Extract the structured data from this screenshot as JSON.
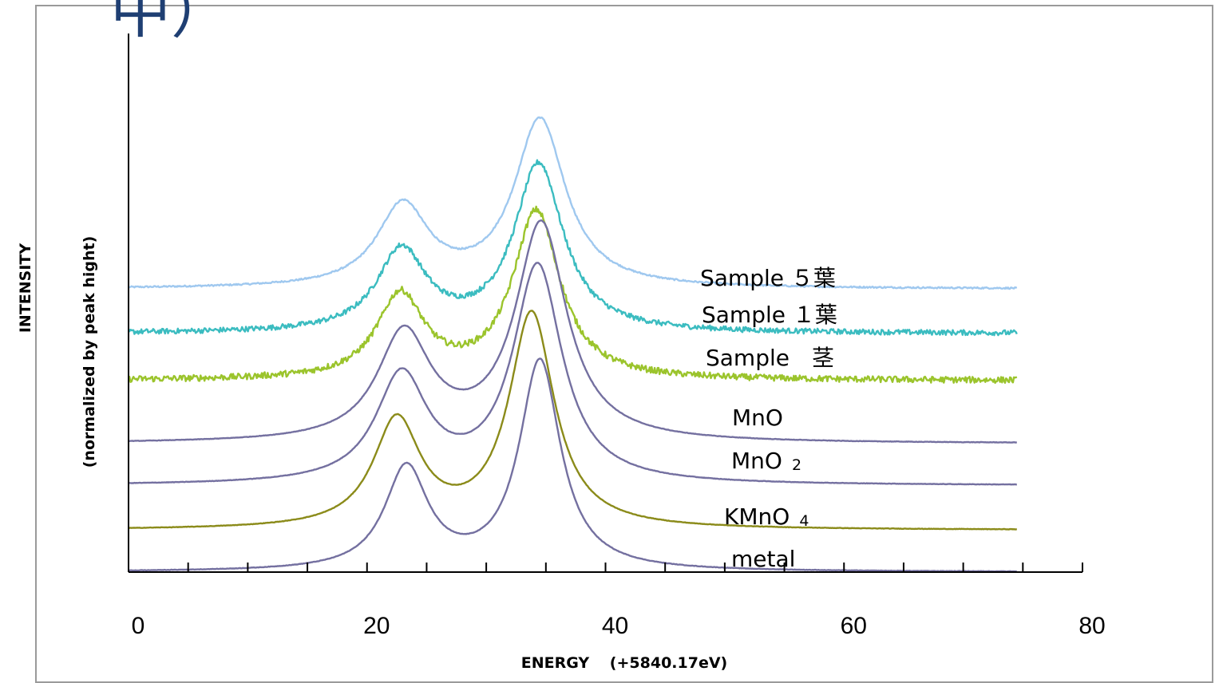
{
  "partial_title": "中）",
  "chart_data": {
    "type": "line",
    "xlabel": "ENERGY　 (+5840.17eV)",
    "ylabel_line1": "INTENSITY",
    "ylabel_line2": "(normalized by peak hight)",
    "xlim": [
      0,
      80
    ],
    "x_ticks": [
      0,
      20,
      40,
      60,
      80
    ],
    "x_tick_labels": [
      "0",
      "20",
      "40",
      "60",
      "80"
    ],
    "x_minor_step": 5,
    "ylim": [
      0,
      10
    ],
    "grid": false,
    "legend": "inline-labels",
    "x_range_data": [
      0,
      74.5
    ],
    "series": [
      {
        "name": "Sample ５葉",
        "label_main": "Sample ５葉",
        "label_sub": "",
        "color": "#9fc8ef",
        "baseline": 5.4,
        "noise": 0.015,
        "peaks": [
          {
            "center": 23.0,
            "amp": 1.55,
            "width": 2.6
          },
          {
            "center": 34.5,
            "amp": 3.2,
            "width": 2.6
          }
        ]
      },
      {
        "name": "Sample １葉",
        "label_main": "Sample １葉",
        "label_sub": "",
        "color": "#3bbcc0",
        "baseline": 4.55,
        "noise": 0.05,
        "peaks": [
          {
            "center": 22.9,
            "amp": 1.55,
            "width": 2.5
          },
          {
            "center": 34.4,
            "amp": 3.2,
            "width": 2.5
          }
        ]
      },
      {
        "name": "Sample 茎",
        "label_main": "Sample　茎",
        "label_sub": "",
        "color": "#9bc42c",
        "baseline": 3.65,
        "noise": 0.06,
        "peaks": [
          {
            "center": 22.8,
            "amp": 1.6,
            "width": 2.4
          },
          {
            "center": 34.2,
            "amp": 3.2,
            "width": 2.4
          }
        ]
      },
      {
        "name": "MnO",
        "label_main": "MnO",
        "label_sub": "",
        "color": "#7470a0",
        "baseline": 2.45,
        "noise": 0.004,
        "peaks": [
          {
            "center": 23.1,
            "amp": 2.05,
            "width": 2.7
          },
          {
            "center": 34.6,
            "amp": 4.15,
            "width": 2.6
          }
        ]
      },
      {
        "name": "MnO2",
        "label_main": "MnO",
        "label_sub": "2",
        "color": "#7470a0",
        "baseline": 1.65,
        "noise": 0.004,
        "peaks": [
          {
            "center": 22.9,
            "amp": 2.05,
            "width": 2.6
          },
          {
            "center": 34.3,
            "amp": 4.15,
            "width": 2.5
          }
        ]
      },
      {
        "name": "KMnO4",
        "label_main": "KMnO",
        "label_sub": "4",
        "color": "#8b8b1a",
        "baseline": 0.8,
        "noise": 0.004,
        "peaks": [
          {
            "center": 22.5,
            "amp": 2.05,
            "width": 2.4
          },
          {
            "center": 33.8,
            "amp": 4.1,
            "width": 2.3
          }
        ]
      },
      {
        "name": "metal",
        "label_main": "metal",
        "label_sub": "",
        "color": "#7470a0",
        "baseline": 0.0,
        "noise": 0.004,
        "peaks": [
          {
            "center": 23.3,
            "amp": 1.95,
            "width": 2.2
          },
          {
            "center": 34.5,
            "amp": 4.0,
            "width": 2.1
          }
        ]
      }
    ]
  }
}
